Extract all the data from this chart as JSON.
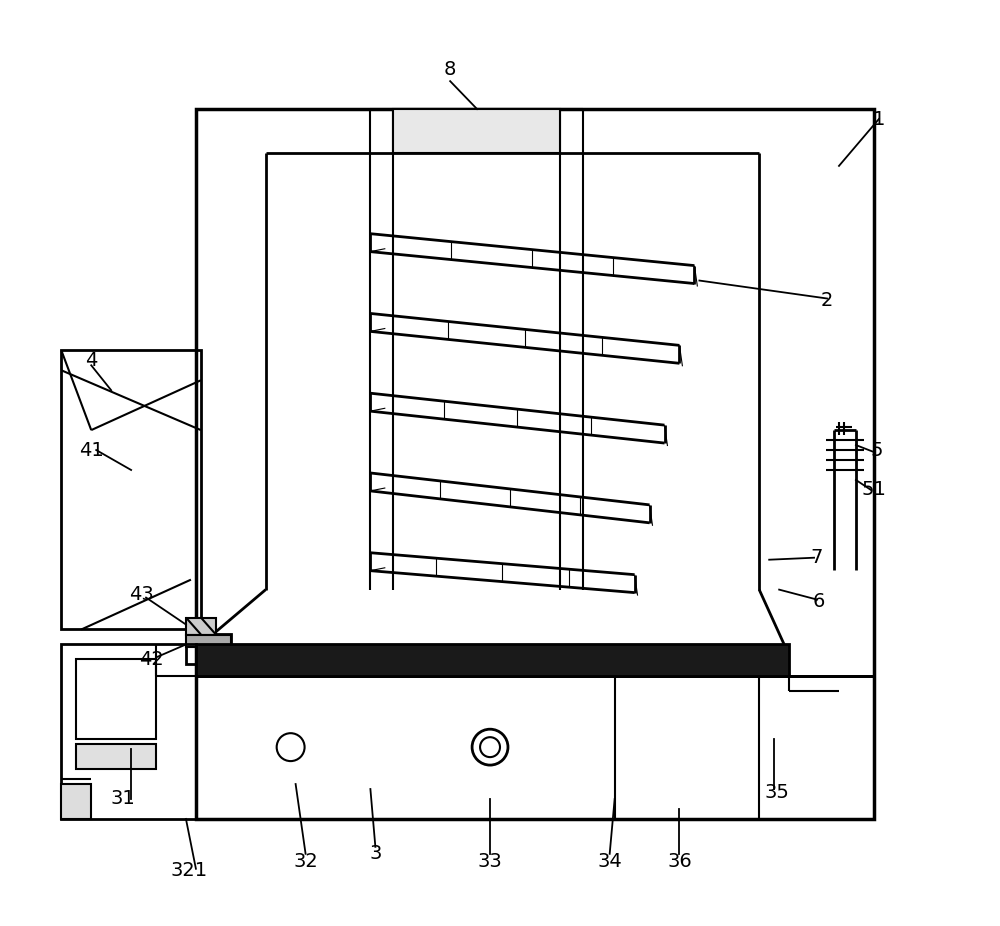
{
  "bg_color": "#ffffff",
  "line_color": "#000000",
  "dark_fill": "#1a1a1a",
  "fig_width": 10.0,
  "fig_height": 9.26,
  "dpi": 100
}
